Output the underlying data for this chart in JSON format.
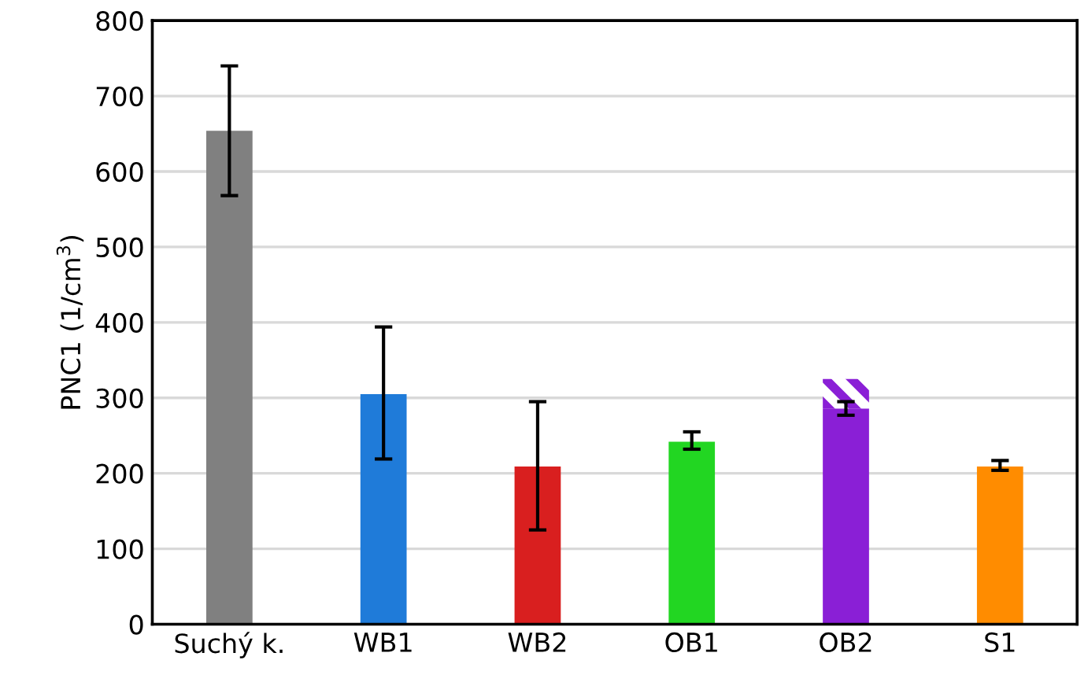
{
  "chart_data": {
    "type": "bar",
    "ylabel": "PNC1 (1/cm$^{3}$)",
    "categories": [
      "Suchý k.",
      "WB1",
      "WB2",
      "OB1",
      "OB2",
      "S1"
    ],
    "stacked": true,
    "series": [
      {
        "colors": [
          "#808080",
          "#1f7bd9",
          "#d91f1f",
          "#22d622",
          "#8a1fd6",
          "#ff8c00"
        ],
        "values": [
          654,
          305,
          209,
          242,
          286,
          209
        ],
        "errors": [
          [
            568,
            740
          ],
          [
            219,
            394
          ],
          [
            125,
            295
          ],
          [
            232,
            255
          ],
          [
            277,
            295
          ],
          [
            204,
            217
          ]
        ]
      },
      {
        "colors": [
          null,
          null,
          null,
          null,
          "#8a1fd6",
          null
        ],
        "values": [
          null,
          null,
          null,
          null,
          39,
          null
        ]
      }
    ],
    "ylim": [
      0,
      800
    ],
    "yticks": [
      0,
      100,
      200,
      300,
      400,
      500,
      600,
      700,
      800
    ],
    "grid": "y",
    "legend": false
  }
}
